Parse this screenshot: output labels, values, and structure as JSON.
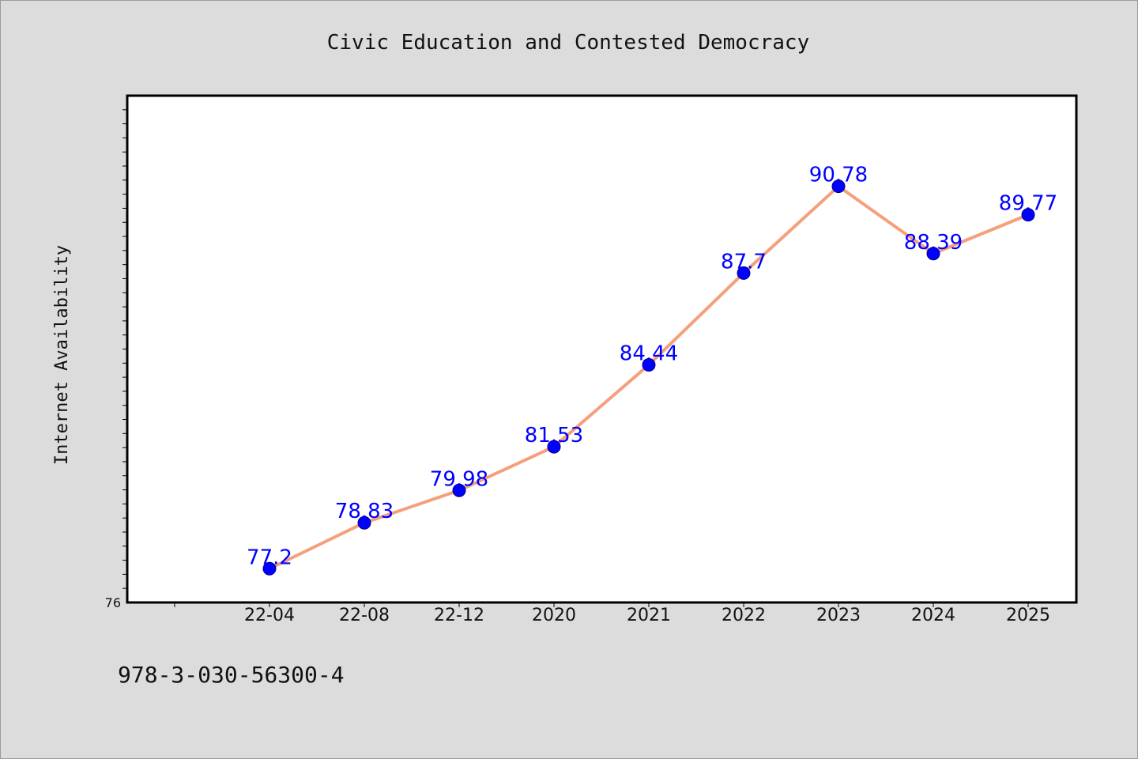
{
  "chart_data": {
    "type": "line",
    "title": "Civic Education and Contested Democracy",
    "xlabel": "",
    "ylabel": "Internet Availability",
    "categories": [
      "22-04",
      "22-08",
      "22-12",
      "2020",
      "2021",
      "2022",
      "2023",
      "2024",
      "2025"
    ],
    "series": [
      {
        "values": [
          77.2,
          78.83,
          79.98,
          81.53,
          84.44,
          87.7,
          90.78,
          88.39,
          89.77
        ],
        "data_labels": [
          "77.2",
          "78.83",
          "79.98",
          "81.53",
          "84.44",
          "87.7",
          "90.78",
          "88.39",
          "89.77"
        ]
      }
    ],
    "ylim": [
      76,
      94
    ],
    "y_tick_labels": [
      "76"
    ],
    "grid": false,
    "legend": "none",
    "colors": {
      "line": "#f4a07c",
      "marker": "#0000ff",
      "data_label": "#0000ff",
      "plot_background": "#ffffff",
      "page_background": "#dcdcdc"
    }
  },
  "footer": {
    "isbn": "978-3-030-56300-4"
  }
}
